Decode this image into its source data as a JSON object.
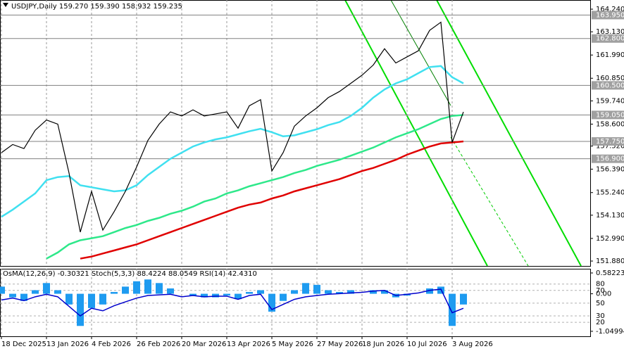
{
  "chart_data": [
    {
      "type": "line",
      "header": "USDJPY,Daily  159.270 159.390 158.932 159.235",
      "categories": [
        "18 Dec 2025",
        null,
        null,
        null,
        "13 Jan 2026",
        null,
        null,
        null,
        "4 Feb 2026",
        null,
        null,
        null,
        "26 Feb 2026",
        null,
        null,
        null,
        "20 Mar 2026",
        null,
        null,
        null,
        "13 Apr 2026",
        null,
        null,
        null,
        "5 May 2026",
        null,
        null,
        null,
        "27 May 2026",
        null,
        null,
        null,
        "18 Jun 2026",
        null,
        null,
        null,
        "10 Jul 2026",
        null,
        null,
        null,
        "3 Aug 2026",
        null
      ],
      "series": [
        {
          "color": "#2ee88a",
          "values": [
            null,
            null,
            null,
            null,
            152.0,
            152.3,
            152.7,
            152.9,
            153.0,
            153.1,
            153.3,
            153.5,
            153.65,
            153.85,
            154.0,
            154.2,
            154.35,
            154.55,
            154.8,
            154.95,
            155.2,
            155.35,
            155.55,
            155.7,
            155.85,
            156.0,
            156.2,
            156.35,
            156.55,
            156.7,
            156.85,
            157.05,
            157.25,
            157.45,
            157.7,
            157.95,
            158.15,
            158.35,
            158.6,
            158.85,
            159.0,
            159.05
          ]
        },
        {
          "color": "#e00000",
          "values": [
            null,
            null,
            null,
            null,
            null,
            null,
            null,
            152.0,
            152.1,
            152.25,
            152.4,
            152.55,
            152.7,
            152.9,
            153.1,
            153.3,
            153.5,
            153.7,
            153.9,
            154.1,
            154.3,
            154.5,
            154.65,
            154.75,
            154.95,
            155.1,
            155.3,
            155.45,
            155.6,
            155.75,
            155.9,
            156.1,
            156.3,
            156.45,
            156.65,
            156.85,
            157.1,
            157.3,
            157.5,
            157.65,
            157.7,
            157.75
          ]
        },
        {
          "color": "#40e0f0",
          "values": [
            154.05,
            154.4,
            154.8,
            155.2,
            155.85,
            156.0,
            156.05,
            155.6,
            155.5,
            155.4,
            155.3,
            155.35,
            155.6,
            156.1,
            156.5,
            156.9,
            157.2,
            157.5,
            157.7,
            157.85,
            157.95,
            158.1,
            158.25,
            158.37,
            158.2,
            158.0,
            158.05,
            158.2,
            158.35,
            158.55,
            158.7,
            159.0,
            159.4,
            159.9,
            160.3,
            160.6,
            160.8,
            161.1,
            161.4,
            161.45,
            160.9,
            160.6
          ]
        },
        {
          "color": "#000000",
          "values": [
            157.2,
            157.6,
            157.4,
            158.3,
            158.8,
            158.6,
            156.2,
            153.3,
            155.3,
            153.4,
            154.3,
            155.3,
            156.5,
            157.8,
            158.6,
            159.2,
            159.0,
            159.3,
            159.0,
            159.1,
            159.2,
            158.4,
            159.5,
            159.8,
            156.3,
            157.2,
            158.5,
            159.0,
            159.4,
            159.9,
            160.2,
            160.6,
            161.0,
            161.5,
            162.3,
            161.6,
            161.9,
            162.2,
            163.2,
            163.6,
            157.7,
            159.2
          ]
        }
      ],
      "ylim": [
        151.64,
        164.69
      ],
      "yticks": [
        {
          "value": 164.24,
          "label": "164.240"
        },
        {
          "value": 163.13,
          "label": "163.130"
        },
        {
          "value": 161.99,
          "label": "161.990"
        },
        {
          "value": 160.85,
          "label": "160.850"
        },
        {
          "value": 159.74,
          "label": "159.740"
        },
        {
          "value": 158.6,
          "label": "158.600"
        },
        {
          "value": 157.52,
          "label": "157.520"
        },
        {
          "value": 156.39,
          "label": "156.390"
        },
        {
          "value": 155.24,
          "label": "155.240"
        },
        {
          "value": 154.13,
          "label": "154.130"
        },
        {
          "value": 152.99,
          "label": "152.990"
        },
        {
          "value": 151.88,
          "label": "151.880"
        }
      ],
      "levels": [
        {
          "value": 163.95,
          "label": "163.950"
        },
        {
          "value": 162.8,
          "label": "162.800"
        },
        {
          "value": 160.5,
          "label": "160.500"
        },
        {
          "value": 159.05,
          "label": "159.050"
        },
        {
          "value": 157.75,
          "label": "157.750"
        },
        {
          "value": 156.9,
          "label": "156.900"
        }
      ],
      "grid": true
    },
    {
      "type": "bar",
      "header": "OsMA(12,26,9) -0.30321 Stoch(5,3,3) 88.4224 88.0549 RSI(14) 42.4310",
      "series": [
        {
          "color": "#1e9bf0",
          "values": [
            0.2,
            -0.1,
            -0.2,
            0.1,
            0.3,
            0.1,
            -0.3,
            -0.9,
            -0.4,
            -0.3,
            0.05,
            0.2,
            0.35,
            0.4,
            0.3,
            0.15,
            0.0,
            -0.05,
            -0.1,
            -0.1,
            -0.05,
            -0.15,
            0.05,
            0.1,
            -0.5,
            -0.2,
            0.1,
            0.3,
            0.25,
            0.1,
            0.05,
            0.1,
            0.0,
            0.1,
            0.1,
            -0.1,
            -0.05,
            0.0,
            0.15,
            0.2,
            -0.9,
            -0.3
          ]
        },
        {
          "color": "#0000cd",
          "axis": "y2",
          "values": [
            55,
            58,
            54,
            60,
            64,
            60,
            45,
            30,
            42,
            38,
            46,
            52,
            58,
            62,
            63,
            64,
            60,
            62,
            60,
            61,
            61,
            56,
            62,
            64,
            40,
            48,
            56,
            60,
            62,
            64,
            65,
            66,
            67,
            69,
            70,
            62,
            64,
            66,
            70,
            72,
            35,
            42
          ]
        }
      ],
      "ylim": [
        -1.19,
        0.7
      ],
      "yticks": [
        0.58223,
        {
          "value": 0,
          "label": "0.00"
        },
        -1.04994
      ],
      "y2lim": [
        -2,
        104
      ],
      "y2ticks": [
        80,
        70,
        50,
        30,
        20
      ]
    }
  ]
}
